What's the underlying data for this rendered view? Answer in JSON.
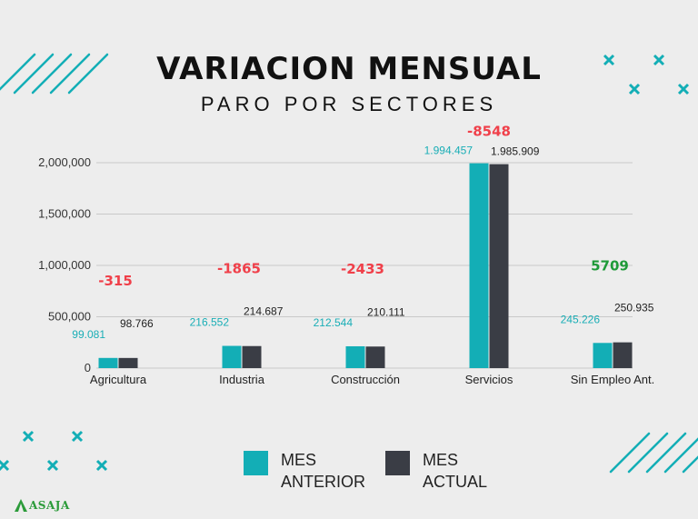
{
  "header": {
    "title": "VARIACION MENSUAL",
    "subtitle": "PARO POR SECTORES"
  },
  "legend": [
    {
      "label": "MES ANTERIOR",
      "color": "#13aeb6"
    },
    {
      "label": "MES ACTUAL",
      "color": "#3a3d45"
    }
  ],
  "logo": {
    "text": "ASAJA",
    "color": "#2c9b3a"
  },
  "colors": {
    "negative": "#f0404a",
    "positive": "#1e9a38",
    "decoration": "#13aeb6"
  },
  "chart_data": {
    "type": "bar",
    "categories": [
      "Agricultura",
      "Industria",
      "Construcción",
      "Servicios",
      "Sin Empleo Ant."
    ],
    "series": [
      {
        "name": "MES ANTERIOR",
        "values": [
          99081,
          216552,
          212544,
          1994457,
          245226
        ],
        "labels": [
          "99.081",
          "216.552",
          "212.544",
          "1.994.457",
          "245.226"
        ]
      },
      {
        "name": "MES ACTUAL",
        "values": [
          98766,
          214687,
          210111,
          1985909,
          250935
        ],
        "labels": [
          "98.766",
          "214.687",
          "210.111",
          "1.985.909",
          "250.935"
        ]
      }
    ],
    "variations": [
      "-315",
      "-1865",
      "-2433",
      "-8548",
      "5709"
    ],
    "yticks": [
      0,
      500000,
      1000000,
      1500000,
      2000000
    ],
    "ytick_labels": [
      "0",
      "500,000",
      "1,000,000",
      "1,500,000",
      "2,000,000"
    ],
    "ylim": [
      0,
      2000000
    ],
    "grid": true,
    "legend_position": "bottom"
  }
}
